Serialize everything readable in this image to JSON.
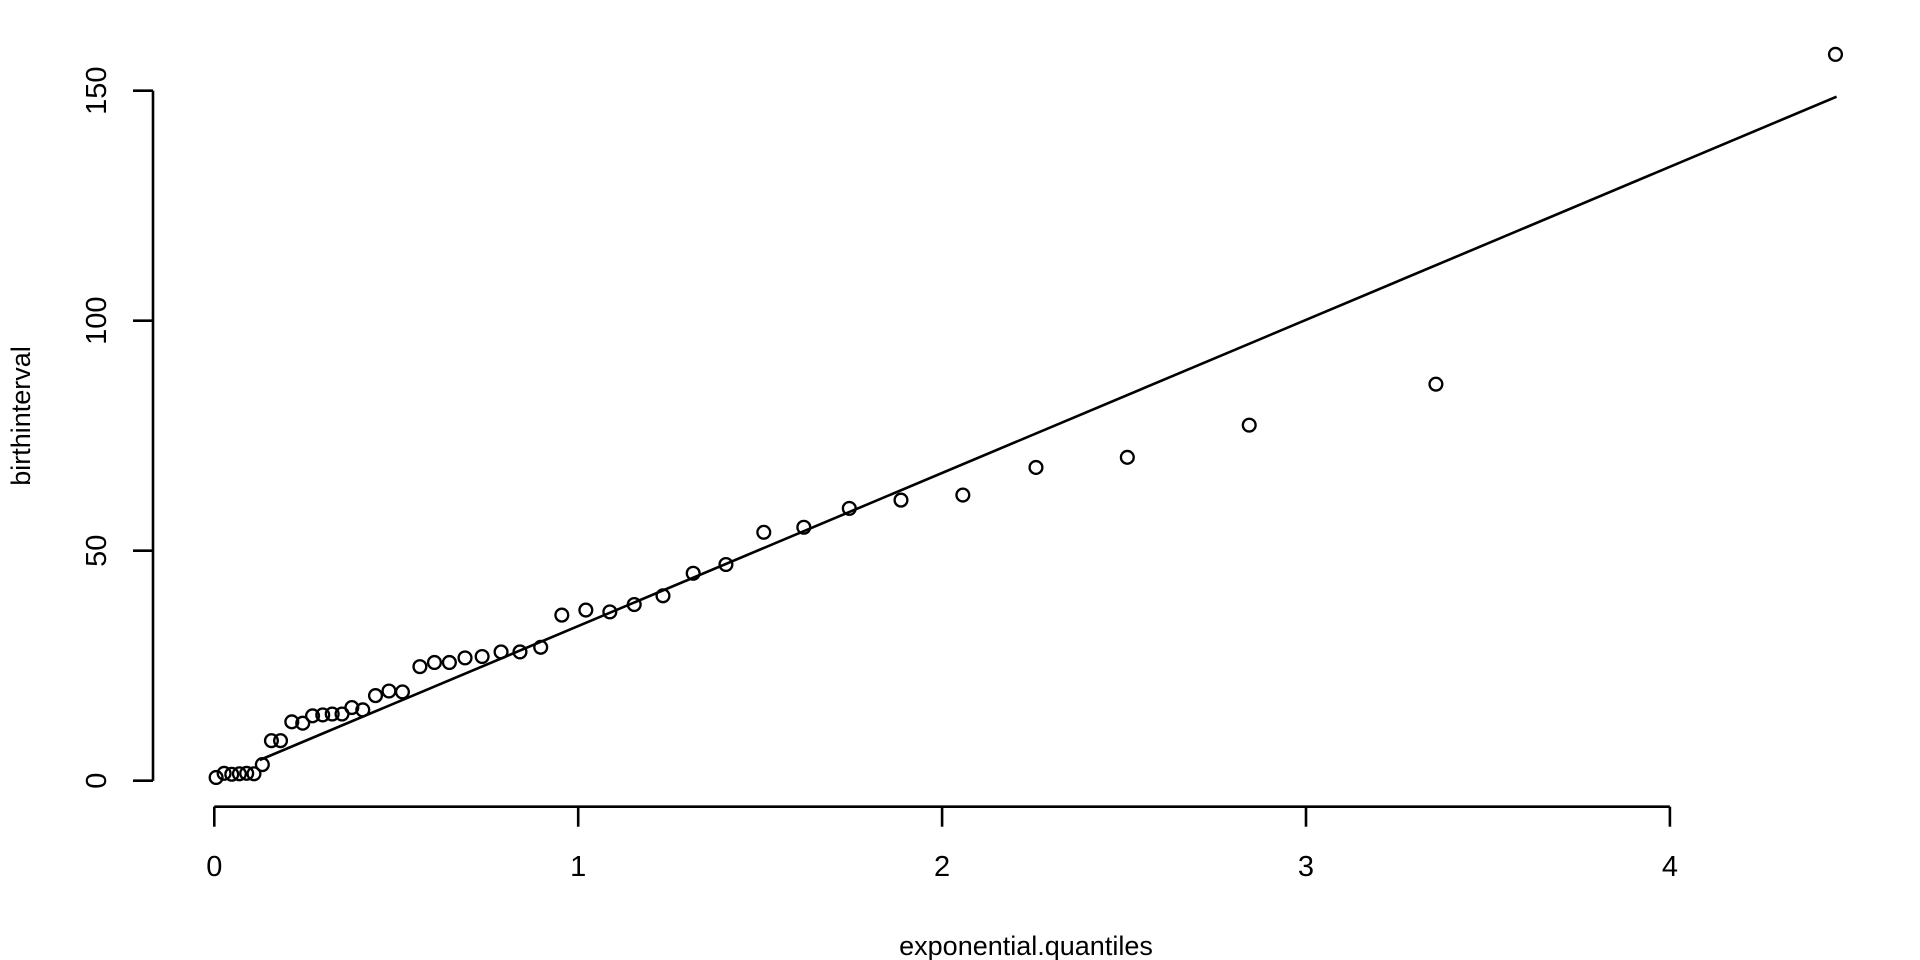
{
  "figure": {
    "background_color": "#ffffff",
    "foreground_color": "#000000"
  },
  "chart_data": {
    "type": "scatter",
    "title": "",
    "xlabel": "exponential.quantiles",
    "ylabel": "birthinterval",
    "x_ticks": [
      0,
      1,
      2,
      3,
      4
    ],
    "y_ticks": [
      0,
      50,
      100,
      150
    ],
    "xlim": [
      -0.17,
      4.58
    ],
    "ylim": [
      -5.8,
      163.7
    ],
    "grid": false,
    "legend": null,
    "marker": "open-circle",
    "x": [
      0.005,
      0.027,
      0.048,
      0.069,
      0.089,
      0.109,
      0.132,
      0.157,
      0.182,
      0.213,
      0.243,
      0.27,
      0.298,
      0.324,
      0.351,
      0.378,
      0.408,
      0.443,
      0.48,
      0.517,
      0.565,
      0.605,
      0.646,
      0.689,
      0.736,
      0.788,
      0.84,
      0.897,
      0.955,
      1.021,
      1.087,
      1.154,
      1.233,
      1.316,
      1.406,
      1.51,
      1.62,
      1.745,
      1.887,
      2.057,
      2.258,
      2.509,
      2.844,
      3.357,
      4.455
    ],
    "y": [
      0.7,
      1.6,
      1.4,
      1.5,
      1.6,
      1.5,
      3.5,
      8.7,
      8.7,
      12.8,
      12.5,
      14.1,
      14.3,
      14.5,
      14.5,
      15.9,
      15.4,
      18.5,
      19.5,
      19.3,
      24.8,
      25.7,
      25.7,
      26.7,
      27.0,
      28.0,
      28.0,
      29.0,
      36.0,
      37.1,
      36.7,
      38.3,
      40.2,
      45.1,
      47.0,
      54.0,
      55.1,
      59.2,
      61.0,
      62.1,
      68.1,
      70.3,
      77.3,
      86.2,
      157.9
    ],
    "reference_line": {
      "x1": 0.125,
      "y1": 4.5,
      "x2": 4.458,
      "y2": 148.7
    }
  }
}
